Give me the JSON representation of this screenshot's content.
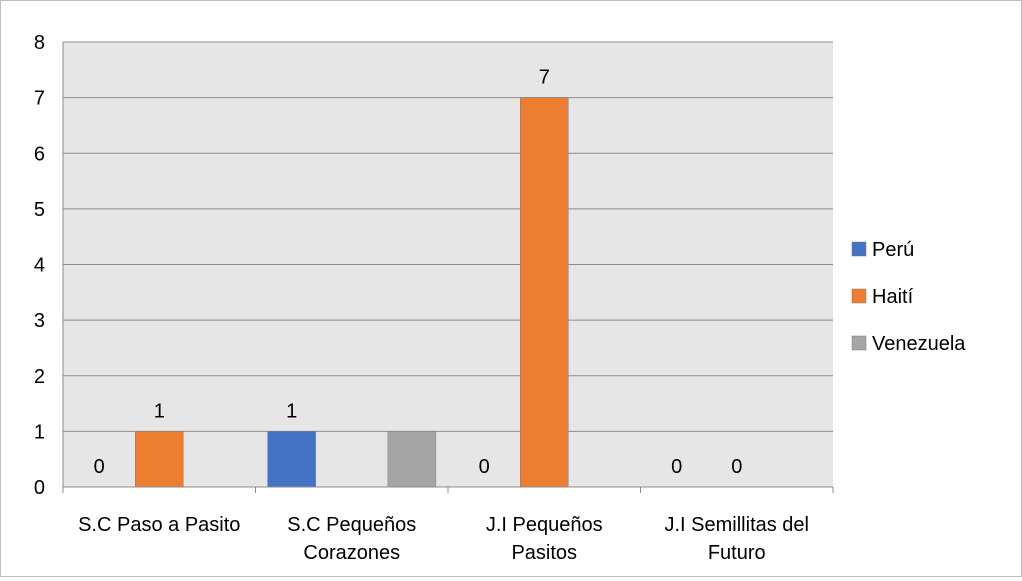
{
  "chart_data": {
    "type": "bar",
    "categories": [
      [
        "S.C Paso a Pasito"
      ],
      [
        "S.C Pequeños",
        "Corazones"
      ],
      [
        "J.I Pequeños",
        "Pasitos"
      ],
      [
        "J.I Semillitas del",
        "Futuro"
      ]
    ],
    "series": [
      {
        "name": "Perú",
        "color": "#4472C4",
        "values": [
          0,
          1,
          0,
          0
        ]
      },
      {
        "name": "Haití",
        "color": "#ED7D31",
        "values": [
          1,
          0,
          7,
          0
        ]
      },
      {
        "name": "Venezuela",
        "color": "#A5A5A5",
        "values": [
          0,
          1,
          0,
          0
        ]
      }
    ],
    "data_labels": [
      [
        "0",
        "1",
        "0",
        "0"
      ],
      [
        "1",
        "",
        "7",
        "0"
      ],
      [
        "",
        "",
        "",
        ""
      ]
    ],
    "ylim": [
      0,
      8
    ],
    "yticks": [
      0,
      1,
      2,
      3,
      4,
      5,
      6,
      7,
      8
    ],
    "grid": true,
    "legend": "right",
    "plot_background": "#E7E6E6",
    "title": "",
    "xlabel": "",
    "ylabel": ""
  }
}
